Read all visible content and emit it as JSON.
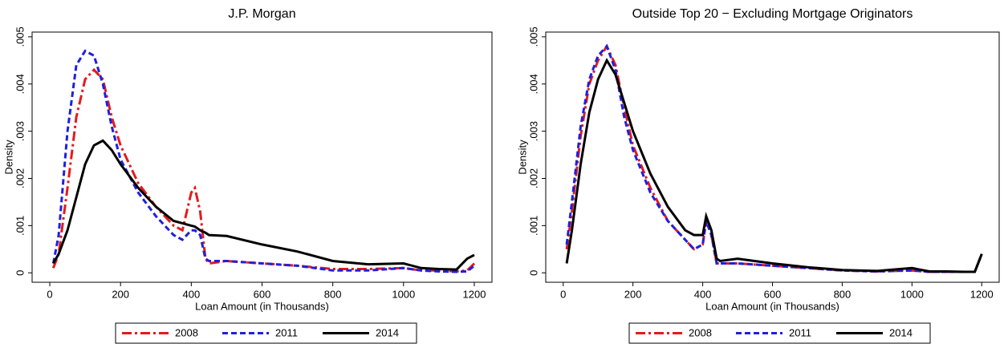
{
  "chart_data": [
    {
      "type": "line",
      "title": "J.P. Morgan",
      "x_label": "Loan Amount (in Thousands)",
      "y_label": "Density",
      "x": [
        10,
        25,
        50,
        75,
        100,
        125,
        150,
        175,
        200,
        250,
        300,
        350,
        375,
        400,
        410,
        425,
        440,
        450,
        500,
        600,
        700,
        800,
        900,
        1000,
        1050,
        1100,
        1150,
        1180,
        1200
      ],
      "series": [
        {
          "name": "2008",
          "color": "#e41a1c",
          "dash": "dashdot",
          "values": [
            0.0001,
            0.0004,
            0.0018,
            0.0033,
            0.0041,
            0.0043,
            0.0041,
            0.0033,
            0.0027,
            0.0019,
            0.0014,
            0.001,
            0.0009,
            0.0017,
            0.0018,
            0.0013,
            0.0003,
            0.0002,
            0.00025,
            0.0002,
            0.00015,
            8e-05,
            8e-05,
            0.0001,
            5e-05,
            5e-05,
            3e-05,
            5e-05,
            0.0002
          ]
        },
        {
          "name": "2011",
          "color": "#1f1fe0",
          "dash": "dash",
          "values": [
            0.0002,
            0.0008,
            0.003,
            0.0044,
            0.0047,
            0.0046,
            0.004,
            0.0031,
            0.0024,
            0.0017,
            0.0012,
            0.0008,
            0.0007,
            0.0009,
            0.0009,
            0.0008,
            0.0003,
            0.00025,
            0.00025,
            0.0002,
            0.00015,
            5e-05,
            5e-05,
            0.0001,
            5e-05,
            3e-05,
            2e-05,
            3e-05,
            0.00015
          ]
        },
        {
          "name": "2014",
          "color": "#000000",
          "dash": "solid",
          "values": [
            0.0002,
            0.0004,
            0.0009,
            0.0016,
            0.0023,
            0.0027,
            0.0028,
            0.0026,
            0.0023,
            0.0018,
            0.0014,
            0.0011,
            0.00105,
            0.001,
            0.00098,
            0.0009,
            0.00085,
            0.0008,
            0.00078,
            0.0006,
            0.00045,
            0.00025,
            0.00018,
            0.0002,
            0.0001,
            8e-05,
            7e-05,
            0.0003,
            0.00038
          ]
        }
      ],
      "xlim": [
        -50,
        1250
      ],
      "xticks": [
        0,
        200,
        400,
        600,
        800,
        1000,
        1200
      ],
      "ylim": [
        -0.0002,
        0.0051
      ],
      "yticks": [
        0,
        {
          "value": 0.001,
          "label": ".001"
        },
        {
          "value": 0.002,
          "label": ".002"
        },
        {
          "value": 0.003,
          "label": ".003"
        },
        {
          "value": 0.004,
          "label": ".004"
        },
        {
          "value": 0.005,
          "label": ".005"
        }
      ],
      "legend": "bottom"
    },
    {
      "type": "line",
      "title": "Outside Top 20 − Excluding Mortgage Originators",
      "x_label": "Loan Amount (in Thousands)",
      "y_label": "Density",
      "x": [
        10,
        25,
        50,
        75,
        100,
        125,
        150,
        175,
        200,
        250,
        300,
        350,
        375,
        400,
        410,
        425,
        440,
        450,
        500,
        600,
        700,
        800,
        900,
        1000,
        1050,
        1100,
        1150,
        1180,
        1200
      ],
      "series": [
        {
          "name": "2008",
          "color": "#e41a1c",
          "dash": "dashdot",
          "values": [
            0.0005,
            0.0013,
            0.0029,
            0.004,
            0.0045,
            0.0048,
            0.0044,
            0.0035,
            0.0027,
            0.0018,
            0.0011,
            0.0007,
            0.0005,
            0.0006,
            0.0011,
            0.0008,
            0.0002,
            0.0002,
            0.0002,
            0.00015,
            0.0001,
            5e-05,
            3e-05,
            5e-05,
            2e-05,
            2e-05,
            2e-05,
            2e-05,
            0.0004
          ]
        },
        {
          "name": "2011",
          "color": "#1f1fe0",
          "dash": "dash",
          "values": [
            0.0006,
            0.0015,
            0.0031,
            0.0041,
            0.0046,
            0.0048,
            0.0043,
            0.0033,
            0.0026,
            0.0017,
            0.0011,
            0.0007,
            0.0005,
            0.0006,
            0.0011,
            0.0008,
            0.0002,
            0.0002,
            0.0002,
            0.00015,
            0.0001,
            5e-05,
            3e-05,
            5e-05,
            2e-05,
            2e-05,
            2e-05,
            2e-05,
            0.0004
          ]
        },
        {
          "name": "2014",
          "color": "#000000",
          "dash": "solid",
          "values": [
            0.0002,
            0.0009,
            0.0023,
            0.0034,
            0.0041,
            0.0045,
            0.0042,
            0.0036,
            0.003,
            0.0021,
            0.0014,
            0.0009,
            0.0008,
            0.0008,
            0.0012,
            0.0009,
            0.0003,
            0.00025,
            0.0003,
            0.0002,
            0.00012,
            6e-05,
            4e-05,
            0.0001,
            3e-05,
            3e-05,
            2e-05,
            2e-05,
            0.0004
          ]
        }
      ],
      "xlim": [
        -50,
        1250
      ],
      "xticks": [
        0,
        200,
        400,
        600,
        800,
        1000,
        1200
      ],
      "ylim": [
        -0.0002,
        0.0051
      ],
      "yticks": [
        0,
        {
          "value": 0.001,
          "label": ".001"
        },
        {
          "value": 0.002,
          "label": ".002"
        },
        {
          "value": 0.003,
          "label": ".003"
        },
        {
          "value": 0.004,
          "label": ".004"
        },
        {
          "value": 0.005,
          "label": ".005"
        }
      ],
      "legend": "bottom"
    }
  ]
}
